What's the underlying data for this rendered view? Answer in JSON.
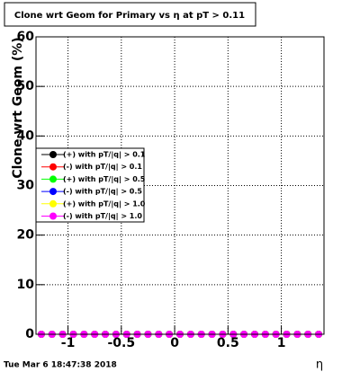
{
  "chart_data": {
    "type": "scatter",
    "title": "Clone wrt Geom for Primary vs  η at pT > 0.11",
    "y_label": "Clone wrt Geom (%)",
    "x_label": "η",
    "footer": "Tue Mar  6 18:47:38 2018",
    "x": [
      -1.25,
      -1.15,
      -1.05,
      -0.95,
      -0.85,
      -0.75,
      -0.65,
      -0.55,
      -0.45,
      -0.35,
      -0.25,
      -0.15,
      -0.05,
      0.05,
      0.15,
      0.25,
      0.35,
      0.45,
      0.55,
      0.65,
      0.75,
      0.85,
      0.95,
      1.05,
      1.15,
      1.25,
      1.35
    ],
    "series": [
      {
        "name": "(+) with pT/|q| > 0.1",
        "color": "#000000",
        "values": [
          0,
          0,
          0,
          0,
          0,
          0,
          0,
          0,
          0,
          0,
          0,
          0,
          0,
          0,
          0,
          0,
          0,
          0,
          0,
          0,
          0,
          0,
          0,
          0,
          0,
          0,
          0
        ]
      },
      {
        "name": "(-) with pT/|q| > 0.1",
        "color": "#ff0000",
        "values": [
          0,
          0,
          0,
          0,
          0,
          0,
          0,
          0,
          0,
          0,
          0,
          0,
          0,
          0,
          0,
          0,
          0,
          0,
          0,
          0,
          0,
          0,
          0,
          0,
          0,
          0,
          0
        ]
      },
      {
        "name": "(+) with pT/|q| > 0.5",
        "color": "#00ff00",
        "values": [
          0,
          0,
          0,
          0,
          0,
          0,
          0,
          0,
          0,
          0,
          0,
          0,
          0,
          0,
          0,
          0,
          0,
          0,
          0,
          0,
          0,
          0,
          0,
          0,
          0,
          0,
          0
        ]
      },
      {
        "name": "(-) with pT/|q| > 0.5",
        "color": "#0000ff",
        "values": [
          0,
          0,
          0,
          0,
          0,
          0,
          0,
          0,
          0,
          0,
          0,
          0,
          0,
          0,
          0,
          0,
          0,
          0,
          0,
          0,
          0,
          0,
          0,
          0,
          0,
          0,
          0
        ]
      },
      {
        "name": "(+) with pT/|q| > 1.0",
        "color": "#ffff00",
        "values": [
          0,
          0,
          0,
          0,
          0,
          0,
          0,
          0,
          0,
          0,
          0,
          0,
          0,
          0,
          0,
          0,
          0,
          0,
          0,
          0,
          0,
          0,
          0,
          0,
          0,
          0,
          0
        ]
      },
      {
        "name": "(-) with pT/|q| > 1.0",
        "color": "#ff00ff",
        "values": [
          0,
          0,
          0,
          0,
          0,
          0,
          0,
          0,
          0,
          0,
          0,
          0,
          0,
          0,
          0,
          0,
          0,
          0,
          0,
          0,
          0,
          0,
          0,
          0,
          0,
          0,
          0
        ]
      }
    ],
    "xlim": [
      -1.3,
      1.4
    ],
    "ylim": [
      0,
      60
    ],
    "xticks": [
      -1,
      -0.5,
      0,
      0.5,
      1
    ],
    "yticks": [
      0,
      10,
      20,
      30,
      40,
      50,
      60
    ],
    "grid": true,
    "legend": "left"
  }
}
